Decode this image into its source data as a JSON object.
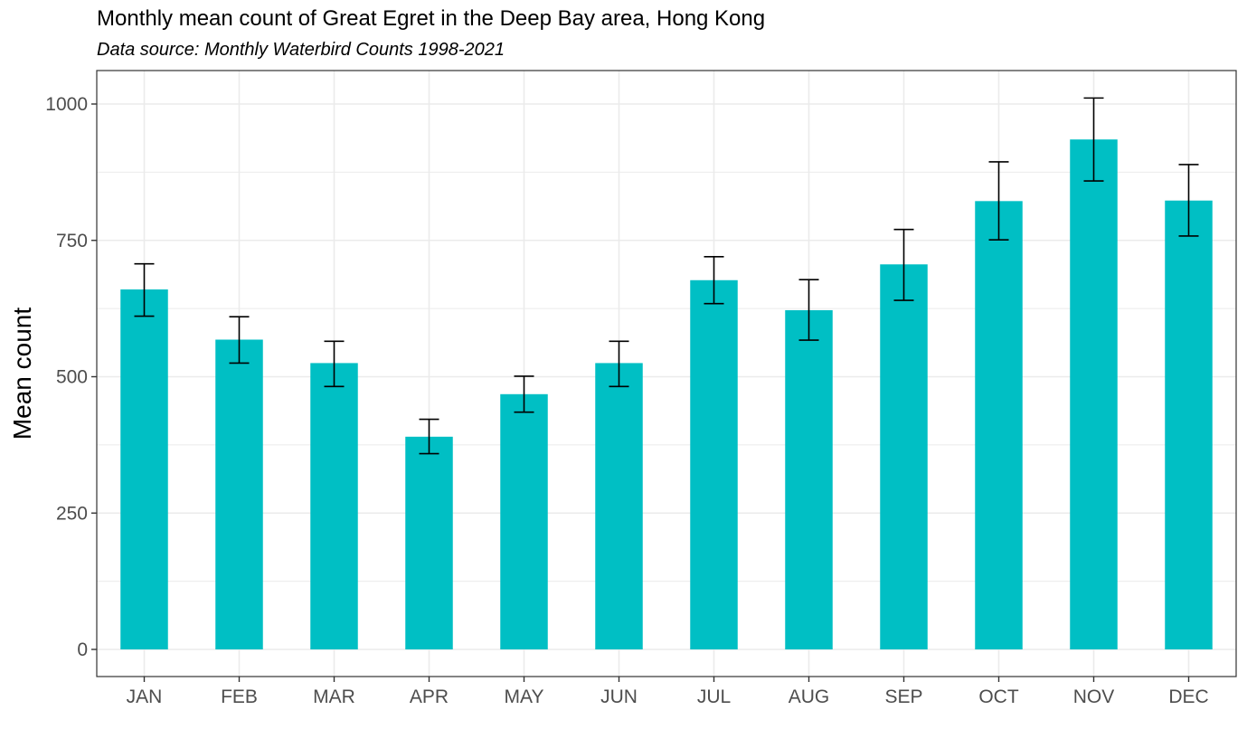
{
  "chart_data": {
    "type": "bar",
    "title": "Monthly mean count of Great Egret in the Deep Bay area, Hong Kong",
    "subtitle": "Data source: Monthly Waterbird Counts 1998-2021",
    "xlabel": "",
    "ylabel": "Mean count",
    "categories": [
      "JAN",
      "FEB",
      "MAR",
      "APR",
      "MAY",
      "JUN",
      "JUL",
      "AUG",
      "SEP",
      "OCT",
      "NOV",
      "DEC"
    ],
    "values": [
      660,
      568,
      525,
      390,
      468,
      525,
      677,
      622,
      706,
      822,
      935,
      823
    ],
    "error_low": [
      611,
      525,
      482,
      359,
      435,
      482,
      634,
      567,
      640,
      751,
      859,
      758
    ],
    "error_high": [
      707,
      610,
      565,
      422,
      501,
      565,
      720,
      678,
      770,
      894,
      1011,
      889
    ],
    "ylim": [
      -60,
      1060
    ],
    "yticks": [
      0,
      250,
      500,
      750,
      1000
    ],
    "grid": true,
    "legend": "none",
    "bar_color": "#00BFC4",
    "error_color": "#000000",
    "grid_color": "#EBEBEB",
    "panel_border_color": "#333333"
  }
}
